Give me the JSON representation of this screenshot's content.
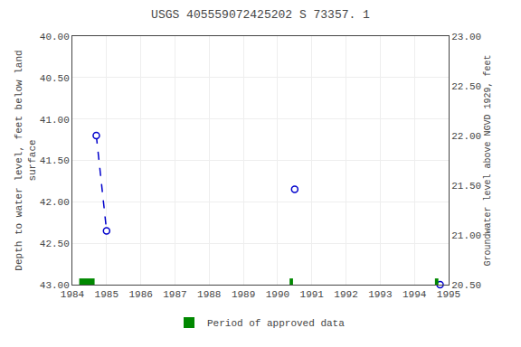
{
  "chart_data": {
    "type": "scatter",
    "title": "USGS 405559072425202 S 73357. 1",
    "y_label": "Depth to water level, feet below land\nsurface",
    "y2_label": "Groundwater level above NGVD 1929, feet",
    "xlim": [
      1984,
      1995
    ],
    "xticks": [
      1984,
      1985,
      1986,
      1987,
      1988,
      1989,
      1990,
      1991,
      1992,
      1993,
      1994,
      1995
    ],
    "ylim": [
      43.0,
      40.0
    ],
    "yticks": [
      {
        "value": 40.0,
        "label": "40.00"
      },
      {
        "value": 40.5,
        "label": "40.50"
      },
      {
        "value": 41.0,
        "label": "41.00"
      },
      {
        "value": 41.5,
        "label": "41.50"
      },
      {
        "value": 42.0,
        "label": "42.00"
      },
      {
        "value": 42.5,
        "label": "42.50"
      },
      {
        "value": 43.0,
        "label": "43.00"
      }
    ],
    "y2lim": [
      20.5,
      23.0
    ],
    "y2ticks": [
      {
        "value": 20.5,
        "label": "20.50"
      },
      {
        "value": 21.0,
        "label": "21.00"
      },
      {
        "value": 21.5,
        "label": "21.50"
      },
      {
        "value": 22.0,
        "label": "22.00"
      },
      {
        "value": 22.5,
        "label": "22.50"
      },
      {
        "value": 23.0,
        "label": "23.00"
      }
    ],
    "grid": true,
    "legend": "bottom",
    "series": [
      {
        "type": "line",
        "color": "#0000cc",
        "line_style": "dashed",
        "x": [
          1984.7,
          1985.0
        ],
        "values": [
          41.2,
          42.35
        ]
      },
      {
        "type": "scatter",
        "color": "#0000cc",
        "marker": "open circle",
        "x": [
          1984.7,
          1985.0,
          1990.5,
          1994.75
        ],
        "values": [
          41.2,
          42.35,
          41.85,
          43.0
        ]
      },
      {
        "type": "period",
        "name": "Period of approved data",
        "color": "#008800",
        "x": [
          1984.2,
          1990.35,
          1994.6
        ],
        "widths": [
          0.45,
          0.1,
          0.1
        ]
      }
    ]
  }
}
